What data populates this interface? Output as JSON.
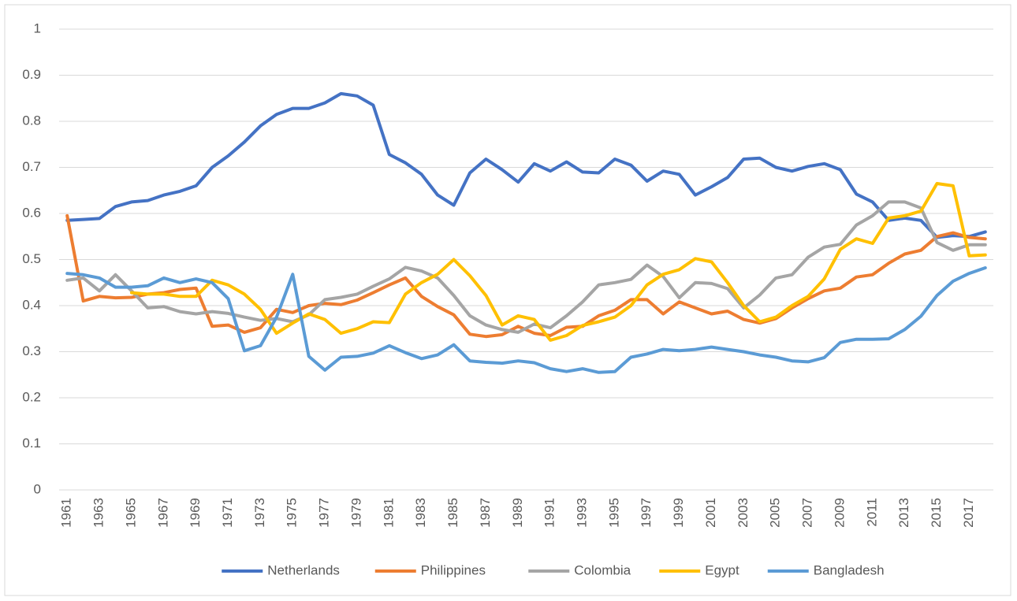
{
  "chart_data": {
    "type": "line",
    "categories": [
      "1961",
      null,
      "1963",
      null,
      "1965",
      null,
      "1967",
      null,
      "1969",
      null,
      "1971",
      null,
      "1973",
      null,
      "1975",
      null,
      "1977",
      null,
      "1979",
      null,
      "1981",
      null,
      "1983",
      null,
      "1985",
      null,
      "1987",
      null,
      "1989",
      null,
      "1991",
      null,
      "1993",
      null,
      "1995",
      null,
      "1997",
      null,
      "1999",
      null,
      "2001",
      null,
      "2003",
      null,
      "2005",
      null,
      "2007",
      null,
      "2009",
      null,
      "2011",
      null,
      "2013",
      null,
      "2015",
      null,
      "2017",
      null
    ],
    "series": [
      {
        "name": "Netherlands",
        "color": "#4472c4",
        "values": [
          0.585,
          0.587,
          0.589,
          0.615,
          0.625,
          0.628,
          0.64,
          0.648,
          0.66,
          0.7,
          0.725,
          0.755,
          0.79,
          0.815,
          0.828,
          0.828,
          0.84,
          0.86,
          0.855,
          0.835,
          0.728,
          0.71,
          0.685,
          0.64,
          0.618,
          0.688,
          0.718,
          0.695,
          0.668,
          0.708,
          0.692,
          0.712,
          0.69,
          0.688,
          0.718,
          0.705,
          0.67,
          0.692,
          0.685,
          0.64,
          0.658,
          0.678,
          0.718,
          0.72,
          0.7,
          0.692,
          0.702,
          0.708,
          0.695,
          0.642,
          0.625,
          0.585,
          0.59,
          0.585,
          0.548,
          0.552,
          0.55,
          0.56
        ]
      },
      {
        "name": "Philippines",
        "color": "#ed7d31",
        "values": [
          0.595,
          0.41,
          0.42,
          0.417,
          0.418,
          0.425,
          0.428,
          0.435,
          0.438,
          0.355,
          0.358,
          0.342,
          0.352,
          0.392,
          0.385,
          0.4,
          0.405,
          0.402,
          0.412,
          0.428,
          0.445,
          0.46,
          0.42,
          0.398,
          0.38,
          0.338,
          0.333,
          0.337,
          0.355,
          0.34,
          0.335,
          0.353,
          0.355,
          0.378,
          0.39,
          0.413,
          0.413,
          0.382,
          0.408,
          0.395,
          0.382,
          0.388,
          0.37,
          0.362,
          0.372,
          0.395,
          0.415,
          0.432,
          0.438,
          0.462,
          0.467,
          0.492,
          0.512,
          0.52,
          0.55,
          0.558,
          0.548,
          0.545
        ]
      },
      {
        "name": "Colombia",
        "color": "#a5a5a5",
        "values": [
          0.455,
          0.46,
          0.432,
          0.467,
          0.432,
          0.395,
          0.398,
          0.387,
          0.382,
          0.387,
          0.383,
          0.375,
          0.368,
          0.372,
          0.365,
          0.38,
          0.413,
          0.418,
          0.425,
          0.442,
          0.458,
          0.483,
          0.475,
          0.46,
          0.422,
          0.378,
          0.358,
          0.348,
          0.342,
          0.36,
          0.352,
          0.378,
          0.408,
          0.445,
          0.45,
          0.457,
          0.488,
          0.463,
          0.417,
          0.45,
          0.448,
          0.437,
          0.395,
          0.423,
          0.46,
          0.467,
          0.505,
          0.527,
          0.533,
          0.575,
          0.595,
          0.625,
          0.625,
          0.612,
          0.537,
          0.52,
          0.532,
          0.532
        ]
      },
      {
        "name": "Egypt",
        "color": "#ffc000",
        "values": [
          null,
          null,
          null,
          null,
          0.428,
          0.425,
          0.425,
          0.42,
          0.42,
          0.455,
          0.445,
          0.425,
          0.392,
          0.34,
          0.362,
          0.382,
          0.37,
          0.34,
          0.35,
          0.365,
          0.363,
          0.425,
          0.45,
          0.468,
          0.5,
          0.465,
          0.422,
          0.358,
          0.378,
          0.37,
          0.325,
          0.335,
          0.357,
          0.365,
          0.375,
          0.4,
          0.445,
          0.468,
          0.478,
          0.502,
          0.495,
          0.45,
          0.4,
          0.365,
          0.375,
          0.4,
          0.42,
          0.458,
          0.522,
          0.545,
          0.535,
          0.59,
          0.595,
          0.605,
          0.665,
          0.66,
          0.508,
          0.51
        ]
      },
      {
        "name": "Bangladesh",
        "color": "#5b9bd5",
        "values": [
          0.47,
          0.467,
          0.46,
          0.44,
          0.44,
          0.443,
          0.46,
          0.45,
          0.458,
          0.45,
          0.415,
          0.302,
          0.313,
          0.375,
          0.468,
          0.29,
          0.26,
          0.288,
          0.29,
          0.297,
          0.313,
          0.298,
          0.285,
          0.293,
          0.315,
          0.28,
          0.277,
          0.275,
          0.28,
          0.276,
          0.263,
          0.257,
          0.263,
          0.255,
          0.257,
          0.288,
          0.295,
          0.305,
          0.302,
          0.305,
          0.31,
          0.305,
          0.3,
          0.293,
          0.288,
          0.28,
          0.278,
          0.287,
          0.32,
          0.327,
          0.327,
          0.328,
          0.348,
          0.377,
          0.422,
          0.453,
          0.47,
          0.482
        ]
      }
    ],
    "ylim": [
      0,
      1
    ],
    "yticks": [
      0,
      0.1,
      0.2,
      0.3,
      0.4,
      0.5,
      0.6,
      0.7,
      0.8,
      0.9,
      1
    ],
    "grid": true,
    "legend": "bottom"
  }
}
